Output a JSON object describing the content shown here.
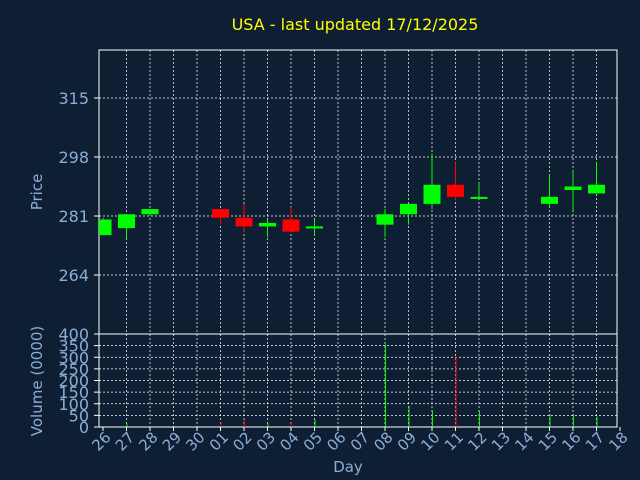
{
  "chart_data": {
    "type": "candlestick",
    "title": "USA - last updated 17/12/2025",
    "ylabel": "Price",
    "volume_label": "Volume (0000)",
    "xlabel": "Day",
    "grid": true,
    "ylim": [
      250,
      320
    ],
    "yticks": [
      264,
      281,
      298,
      315
    ],
    "volume_ylim": [
      0,
      400
    ],
    "volume_yticks": [
      0,
      50,
      100,
      150,
      200,
      250,
      300,
      350,
      400
    ],
    "x_labels": [
      "26",
      "27",
      "28",
      "29",
      "30",
      "01",
      "02",
      "03",
      "04",
      "05",
      "06",
      "07",
      "08",
      "09",
      "10",
      "11",
      "12",
      "13",
      "14",
      "15",
      "16",
      "17",
      "18"
    ],
    "colors": {
      "up": "#00ff00",
      "down": "#ff0000",
      "title": "#ffff00",
      "text": "#8aaed6",
      "background": "#0f1f33"
    },
    "candles": [
      {
        "day": "26",
        "open": 275.5,
        "high": 280.5,
        "low": 275.5,
        "close": 280.0,
        "volume": 0
      },
      {
        "day": "27",
        "open": 277.5,
        "high": 281.5,
        "low": 274.5,
        "close": 281.5,
        "volume": 15
      },
      {
        "day": "28",
        "open": 281.5,
        "high": 283.0,
        "low": 281.0,
        "close": 283.0,
        "volume": 3
      },
      {
        "day": "01",
        "open": 283.0,
        "high": 283.0,
        "low": 278.5,
        "close": 280.5,
        "volume": 20
      },
      {
        "day": "02",
        "open": 280.5,
        "high": 284.5,
        "low": 276.5,
        "close": 278.0,
        "volume": 30
      },
      {
        "day": "03",
        "open": 278.0,
        "high": 280.0,
        "low": 275.0,
        "close": 279.0,
        "volume": 15
      },
      {
        "day": "04",
        "open": 280.0,
        "high": 283.5,
        "low": 276.5,
        "close": 276.5,
        "volume": 20
      },
      {
        "day": "05",
        "open": 277.5,
        "high": 280.0,
        "low": 275.5,
        "close": 278.0,
        "volume": 30
      },
      {
        "day": "08",
        "open": 278.5,
        "high": 283.0,
        "low": 275.0,
        "close": 281.5,
        "volume": 355
      },
      {
        "day": "09",
        "open": 281.5,
        "high": 284.5,
        "low": 278.5,
        "close": 284.5,
        "volume": 90
      },
      {
        "day": "10",
        "open": 284.5,
        "high": 299.0,
        "low": 283.0,
        "close": 290.0,
        "volume": 70
      },
      {
        "day": "11",
        "open": 290.0,
        "high": 296.5,
        "low": 285.5,
        "close": 286.5,
        "volume": 305
      },
      {
        "day": "12",
        "open": 286.0,
        "high": 290.5,
        "low": 286.0,
        "close": 286.5,
        "volume": 70
      },
      {
        "day": "15",
        "open": 284.5,
        "high": 293.0,
        "low": 284.0,
        "close": 286.5,
        "volume": 55
      },
      {
        "day": "16",
        "open": 288.5,
        "high": 294.0,
        "low": 282.5,
        "close": 289.5,
        "volume": 55
      },
      {
        "day": "17",
        "open": 287.5,
        "high": 296.5,
        "low": 287.5,
        "close": 290.0,
        "volume": 45
      }
    ]
  }
}
